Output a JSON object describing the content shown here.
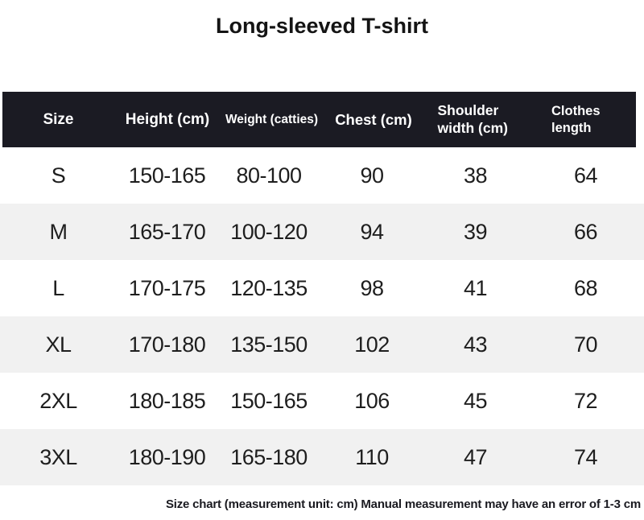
{
  "colors": {
    "header_bg": "#1b1b23",
    "header_text": "#ffffff",
    "stripe_bg": "#f1f1f1",
    "row_bg": "#ffffff",
    "body_text": "#1e1e1e"
  },
  "chart_data": {
    "type": "table",
    "title": "Long-sleeved T-shirt",
    "columns": [
      "Size",
      "Height (cm)",
      "Weight (catties)",
      "Chest (cm)",
      "Shoulder width (cm)",
      "Clothes length"
    ],
    "rows": [
      [
        "S",
        "150-165",
        "80-100",
        "90",
        "38",
        "64"
      ],
      [
        "M",
        "165-170",
        "100-120",
        "94",
        "39",
        "66"
      ],
      [
        "L",
        "170-175",
        "120-135",
        "98",
        "41",
        "68"
      ],
      [
        "XL",
        "170-180",
        "135-150",
        "102",
        "43",
        "70"
      ],
      [
        "2XL",
        "180-185",
        "150-165",
        "106",
        "45",
        "72"
      ],
      [
        "3XL",
        "180-190",
        "165-180",
        "110",
        "47",
        "74"
      ]
    ],
    "note": "Size chart (measurement unit: cm) Manual measurement may have an error of 1-3 cm"
  }
}
